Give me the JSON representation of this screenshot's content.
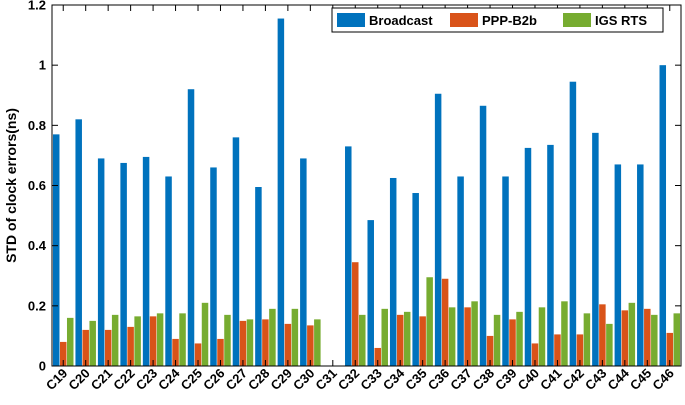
{
  "chart_data": {
    "type": "bar",
    "xlabel": "",
    "ylabel": "STD of clock errors(ns)",
    "ylim": [
      0,
      1.2
    ],
    "yticks": [
      "0",
      "0.2",
      "0.4",
      "0.6",
      "0.8",
      "1",
      "1.2"
    ],
    "grid": false,
    "legend_position": "top-right",
    "categories": [
      "C19",
      "C20",
      "C21",
      "C22",
      "C23",
      "C24",
      "C25",
      "C26",
      "C27",
      "C28",
      "C29",
      "C30",
      "C31",
      "C32",
      "C33",
      "C34",
      "C35",
      "C36",
      "C37",
      "C38",
      "C39",
      "C40",
      "C41",
      "C42",
      "C43",
      "C44",
      "C45",
      "C46"
    ],
    "series": [
      {
        "name": "Broadcast",
        "color": "#0072BD",
        "values": [
          0.77,
          0.82,
          0.69,
          0.675,
          0.695,
          0.63,
          0.92,
          0.66,
          0.76,
          0.595,
          1.155,
          0.69,
          0,
          0.73,
          0.485,
          0.625,
          0.575,
          0.905,
          0.63,
          0.865,
          0.63,
          0.725,
          0.735,
          0.945,
          0.775,
          0.67,
          0.67,
          1.0
        ]
      },
      {
        "name": "PPP-B2b",
        "color": "#D95319",
        "values": [
          0.08,
          0.12,
          0.12,
          0.13,
          0.165,
          0.09,
          0.075,
          0.09,
          0.15,
          0.155,
          0.14,
          0.135,
          0,
          0.345,
          0.06,
          0.17,
          0.165,
          0.29,
          0.195,
          0.1,
          0.155,
          0.075,
          0.105,
          0.105,
          0.205,
          0.185,
          0.19,
          0.11
        ]
      },
      {
        "name": "IGS RTS",
        "color": "#77AC30",
        "values": [
          0.16,
          0.15,
          0.17,
          0.165,
          0.175,
          0.175,
          0.21,
          0.17,
          0.155,
          0.19,
          0.19,
          0.155,
          0,
          0.17,
          0.19,
          0.18,
          0.295,
          0.195,
          0.215,
          0.17,
          0.18,
          0.195,
          0.215,
          0.175,
          0.14,
          0.21,
          0.17,
          0.175
        ]
      }
    ]
  }
}
